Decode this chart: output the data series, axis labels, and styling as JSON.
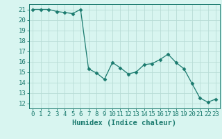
{
  "x": [
    0,
    1,
    2,
    3,
    4,
    5,
    6,
    7,
    8,
    9,
    10,
    11,
    12,
    13,
    14,
    15,
    16,
    17,
    18,
    19,
    20,
    21,
    22,
    23
  ],
  "y": [
    21.0,
    21.0,
    21.0,
    20.8,
    20.7,
    20.6,
    21.0,
    15.3,
    14.9,
    14.3,
    15.9,
    15.4,
    14.8,
    15.0,
    15.7,
    15.8,
    16.2,
    16.7,
    15.9,
    15.3,
    13.9,
    12.5,
    12.1,
    12.4
  ],
  "line_color": "#1a7a6e",
  "marker": "D",
  "marker_size": 2.5,
  "bg_color": "#d8f5f0",
  "grid_color": "#b8dcd6",
  "tick_color": "#1a7a6e",
  "xlabel": "Humidex (Indice chaleur)",
  "xlim": [
    -0.5,
    23.5
  ],
  "ylim": [
    11.5,
    21.5
  ],
  "yticks": [
    12,
    13,
    14,
    15,
    16,
    17,
    18,
    19,
    20,
    21
  ],
  "xticks": [
    0,
    1,
    2,
    3,
    4,
    5,
    6,
    7,
    8,
    9,
    10,
    11,
    12,
    13,
    14,
    15,
    16,
    17,
    18,
    19,
    20,
    21,
    22,
    23
  ],
  "font_size": 6.5,
  "xlabel_font_size": 7.5
}
